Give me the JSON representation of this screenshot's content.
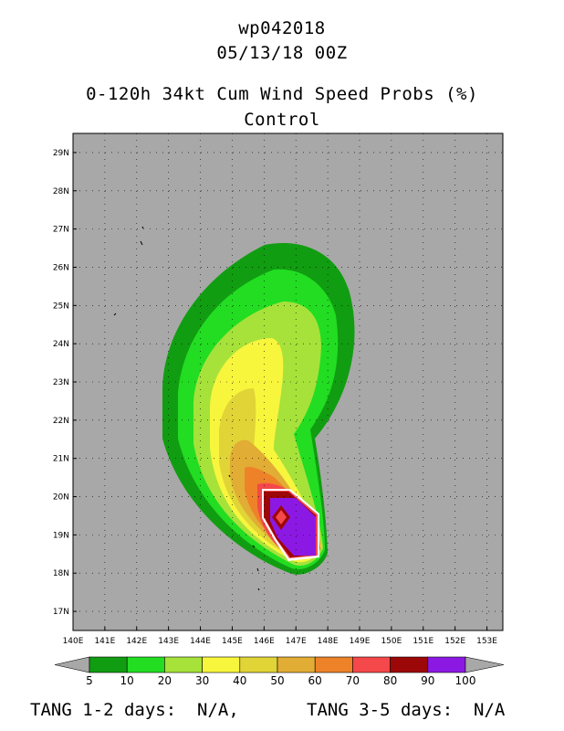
{
  "header": {
    "storm_id": "wp042018",
    "datetime": "05/13/18 00Z",
    "product": "0-120h 34kt Cum Wind Speed Probs (%)",
    "run": "Control"
  },
  "map": {
    "lon_labels": [
      "140E",
      "141E",
      "142E",
      "143E",
      "144E",
      "145E",
      "146E",
      "147E",
      "148E",
      "149E",
      "150E",
      "151E",
      "152E",
      "153E"
    ],
    "lat_labels": [
      "17N",
      "18N",
      "19N",
      "20N",
      "21N",
      "22N",
      "23N",
      "24N",
      "25N",
      "26N",
      "27N",
      "28N",
      "29N"
    ],
    "lon_range": [
      140,
      153.5
    ],
    "lat_range": [
      16.5,
      29.5
    ],
    "background_color": "#a8a8a8"
  },
  "colorbar": {
    "levels": [
      "5",
      "10",
      "20",
      "30",
      "40",
      "50",
      "60",
      "70",
      "80",
      "90",
      "100"
    ],
    "colors": [
      "#119d11",
      "#22dd22",
      "#a6e23a",
      "#f8f53d",
      "#e0d437",
      "#e2ad34",
      "#ee8229",
      "#f4484a",
      "#9c0707",
      "#8c19e3"
    ],
    "end_color": "#a8a8a8"
  },
  "footer": {
    "tang_12": "TANG 1-2 days:  N/A,",
    "tang_35": "TANG 3-5 days:  N/A"
  }
}
